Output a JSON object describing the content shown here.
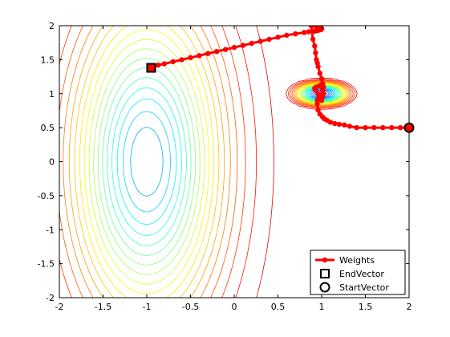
{
  "chart_data": {
    "type": "line",
    "title": "",
    "xlabel": "",
    "ylabel": "",
    "xlim": [
      -2,
      2
    ],
    "ylim": [
      -2,
      2
    ],
    "xticks": [
      -2,
      -1.5,
      -1,
      -0.5,
      0,
      0.5,
      1,
      1.5,
      2
    ],
    "yticks": [
      -2,
      -1.5,
      -1,
      -0.5,
      0,
      0.5,
      1,
      1.5,
      2
    ],
    "xtick_labels": [
      "-2",
      "-1.5",
      "-1",
      "-0.5",
      "0",
      "0.5",
      "1",
      "1.5",
      "2"
    ],
    "ytick_labels": [
      "-2",
      "-1.5",
      "-1",
      "-0.5",
      "0",
      "0.5",
      "1",
      "1.5",
      "2"
    ],
    "grid": false,
    "legend_position": "bottom-right",
    "background": {
      "type": "contour",
      "colormap": "jet",
      "minima": [
        {
          "x": -1.0,
          "y": 0.0
        },
        {
          "x": 1.0,
          "y": 1.0
        }
      ]
    },
    "series": [
      {
        "name": "Weights",
        "color": "#ff0000",
        "marker": "filled-dot",
        "x": [
          2.0,
          1.9,
          1.8,
          1.7,
          1.6,
          1.5,
          1.4,
          1.32,
          1.26,
          1.2,
          1.15,
          1.1,
          1.06,
          1.03,
          1.01,
          0.98,
          0.96,
          0.95,
          0.95,
          0.96,
          0.97,
          0.96,
          0.93,
          0.92,
          0.94,
          0.98,
          1.0,
          1.01,
          1.02,
          1.01,
          1.0,
          0.99,
          1.0,
          1.01,
          1.02,
          1.01,
          1.0,
          0.98,
          0.96,
          0.95,
          0.94,
          0.93,
          0.92,
          0.9,
          0.88,
          0.92,
          0.96,
          0.99,
          1.0,
          1.0,
          0.99,
          0.96,
          0.94,
          0.92,
          0.9,
          0.85,
          0.8,
          0.7,
          0.6,
          0.5,
          0.4,
          0.3,
          0.2,
          0.1,
          0.0,
          -0.1,
          -0.2,
          -0.3,
          -0.4,
          -0.5,
          -0.6,
          -0.7,
          -0.8,
          -0.87,
          -0.92,
          -0.95
        ],
        "y": [
          0.5,
          0.5,
          0.5,
          0.5,
          0.5,
          0.5,
          0.5,
          0.52,
          0.54,
          0.55,
          0.56,
          0.58,
          0.61,
          0.63,
          0.66,
          0.7,
          0.76,
          0.85,
          0.9,
          0.92,
          0.95,
          1.0,
          1.05,
          1.08,
          1.1,
          1.12,
          1.1,
          1.05,
          1.0,
          0.95,
          0.9,
          0.92,
          0.98,
          1.05,
          1.1,
          1.15,
          1.22,
          1.3,
          1.4,
          1.45,
          1.5,
          1.6,
          1.7,
          1.8,
          2.0,
          2.0,
          1.98,
          1.97,
          1.96,
          1.95,
          1.94,
          1.93,
          1.93,
          1.92,
          1.92,
          1.91,
          1.9,
          1.88,
          1.86,
          1.83,
          1.8,
          1.77,
          1.74,
          1.71,
          1.68,
          1.65,
          1.62,
          1.59,
          1.56,
          1.53,
          1.5,
          1.47,
          1.44,
          1.42,
          1.4,
          1.38
        ]
      },
      {
        "name": "EndVector",
        "color": "#000000",
        "marker": "square",
        "x": [
          -0.95
        ],
        "y": [
          1.38
        ]
      },
      {
        "name": "StartVector",
        "color": "#000000",
        "marker": "circle",
        "x": [
          2.0
        ],
        "y": [
          0.5
        ]
      }
    ]
  }
}
